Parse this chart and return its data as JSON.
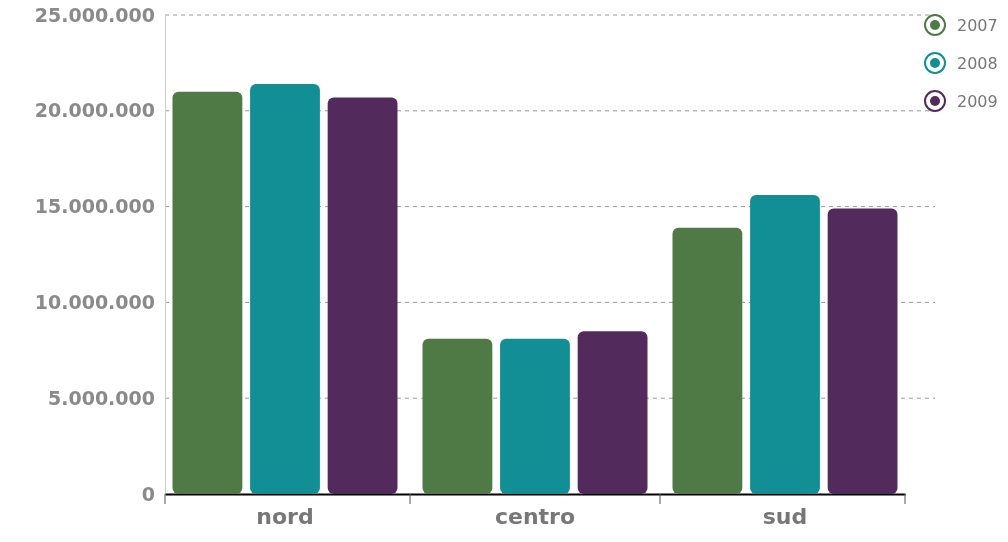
{
  "chart_data": {
    "type": "bar",
    "categories": [
      "nord",
      "centro",
      "sud"
    ],
    "series": [
      {
        "name": "2007",
        "color": "#4f7a45",
        "values": [
          21000000,
          8100000,
          13900000
        ]
      },
      {
        "name": "2008",
        "color": "#128f94",
        "values": [
          21400000,
          8100000,
          15600000
        ]
      },
      {
        "name": "2009",
        "color": "#532a5c",
        "values": [
          20700000,
          8500000,
          14900000
        ]
      }
    ],
    "ylim": [
      0,
      25000000
    ],
    "yticks": [
      0,
      {
        "value": 5000000,
        "label": "5.000.000"
      },
      {
        "value": 10000000,
        "label": "10.000.000"
      },
      {
        "value": 15000000,
        "label": "15.000.000"
      },
      {
        "value": 20000000,
        "label": "20.000.000"
      },
      {
        "value": 25000000,
        "label": "25.000.000"
      }
    ],
    "grid": "y",
    "legend": "top right",
    "marker": "circle"
  }
}
